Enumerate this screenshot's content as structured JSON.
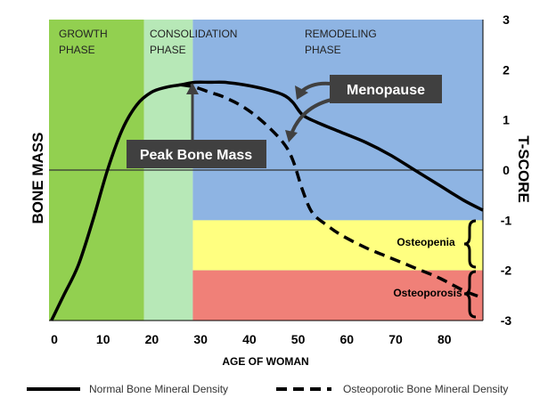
{
  "chart_data": {
    "type": "line",
    "xlabel": "AGE OF WOMAN",
    "ylabel": "BONE MASS",
    "y2label": "T-SCORE",
    "xlim": [
      0,
      89
    ],
    "ylim": [
      -3,
      3
    ],
    "x_ticks": [
      0,
      10,
      20,
      30,
      40,
      50,
      60,
      70,
      80
    ],
    "y2_ticks": [
      3,
      2,
      1,
      0,
      -1,
      -2,
      -3
    ],
    "grid": false,
    "legend_position": "bottom",
    "phases": [
      {
        "label_line1": "GROWTH",
        "label_line2": "PHASE",
        "x_start": 0,
        "x_end": 19.5,
        "color": "#92d050"
      },
      {
        "label_line1": "CONSOLIDATION",
        "label_line2": "PHASE",
        "x_start": 19.5,
        "x_end": 29.5,
        "color": "#b7e8b7"
      },
      {
        "label_line1": "REMODELING",
        "label_line2": "PHASE",
        "x_start": 29.5,
        "x_end": 89,
        "color": "#8eb4e3"
      }
    ],
    "zones": [
      {
        "label": "Osteopenia",
        "y_top": -1,
        "y_bottom": -2,
        "x_start": 29.5,
        "color": "#ffff80"
      },
      {
        "label": "Osteoporosis",
        "y_top": -2,
        "y_bottom": -3,
        "x_start": 29.5,
        "color": "#f08078"
      }
    ],
    "reference_line_y": 0,
    "series": [
      {
        "name": "Normal Bone Mineral Density",
        "style": "solid",
        "color": "#000000",
        "points": [
          [
            0.5,
            -3.0
          ],
          [
            3,
            -2.5
          ],
          [
            6,
            -1.9
          ],
          [
            9,
            -1.0
          ],
          [
            12,
            0.0
          ],
          [
            15,
            0.8
          ],
          [
            18,
            1.3
          ],
          [
            21,
            1.55
          ],
          [
            24,
            1.65
          ],
          [
            27,
            1.7
          ],
          [
            30,
            1.75
          ],
          [
            33,
            1.75
          ],
          [
            36,
            1.75
          ],
          [
            40,
            1.7
          ],
          [
            44,
            1.62
          ],
          [
            48,
            1.5
          ],
          [
            50,
            1.35
          ],
          [
            52,
            1.1
          ],
          [
            55,
            0.95
          ],
          [
            60,
            0.75
          ],
          [
            65,
            0.55
          ],
          [
            70,
            0.3
          ],
          [
            75,
            0.0
          ],
          [
            80,
            -0.3
          ],
          [
            85,
            -0.6
          ],
          [
            89,
            -0.8
          ]
        ]
      },
      {
        "name": "Osteoporotic Bone Mineral Density",
        "style": "dashed",
        "color": "#000000",
        "points": [
          [
            27,
            1.7
          ],
          [
            30,
            1.65
          ],
          [
            33,
            1.55
          ],
          [
            36,
            1.45
          ],
          [
            40,
            1.25
          ],
          [
            44,
            0.95
          ],
          [
            48,
            0.55
          ],
          [
            50,
            0.2
          ],
          [
            52,
            -0.4
          ],
          [
            54,
            -0.85
          ],
          [
            57,
            -1.1
          ],
          [
            60,
            -1.3
          ],
          [
            65,
            -1.55
          ],
          [
            70,
            -1.75
          ],
          [
            75,
            -1.95
          ],
          [
            80,
            -2.15
          ],
          [
            85,
            -2.4
          ],
          [
            89,
            -2.55
          ]
        ]
      }
    ],
    "annotations": [
      {
        "text": "Menopause",
        "bg": "#404040"
      },
      {
        "text": "Peak Bone Mass",
        "bg": "#404040"
      }
    ]
  }
}
